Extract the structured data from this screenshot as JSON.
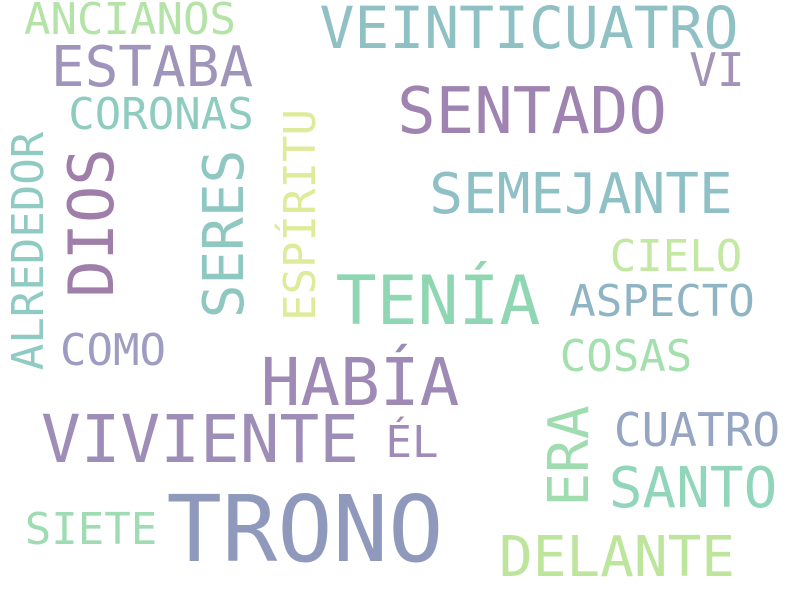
{
  "words": {
    "trono": {
      "text": "TRONO",
      "color": "#8f99bb"
    },
    "viviente": {
      "text": "VIVIENTE",
      "color": "#9e8db7"
    },
    "habia": {
      "text": "HABÍA",
      "color": "#9e8ab5"
    },
    "tenia": {
      "text": "TENÍA",
      "color": "#8fd6b3"
    },
    "sentado": {
      "text": "SENTADO",
      "color": "#9f83b0"
    },
    "veinticuatro": {
      "text": "VEINTICUATRO",
      "color": "#8fc0c4"
    },
    "estaba": {
      "text": "ESTABA",
      "color": "#9f94b9"
    },
    "semejante": {
      "text": "SEMEJANTE",
      "color": "#8fc0c6"
    },
    "delante": {
      "text": "DELANTE",
      "color": "#bde59c"
    },
    "santo": {
      "text": "SANTO",
      "color": "#91d5ba"
    },
    "dios": {
      "text": "DIOS",
      "color": "#9f7ea9"
    },
    "seres": {
      "text": "SERES",
      "color": "#8fc8c0"
    },
    "era": {
      "text": "ERA",
      "color": "#9fdcaf"
    },
    "aspecto": {
      "text": "ASPECTO",
      "color": "#8fb5c4"
    },
    "cuatro": {
      "text": "CUATRO",
      "color": "#95a5c2"
    },
    "cosas": {
      "text": "COSAS",
      "color": "#a4dfae"
    },
    "cielo": {
      "text": "CIELO",
      "color": "#c2e8a3"
    },
    "como": {
      "text": "COMO",
      "color": "#9f9cc3"
    },
    "siete": {
      "text": "SIETE",
      "color": "#9fdcb4"
    },
    "el": {
      "text": "ÉL",
      "color": "#a08ab7"
    },
    "vi": {
      "text": "VI",
      "color": "#a394b7"
    },
    "coronas": {
      "text": "CORONAS",
      "color": "#8fccc0"
    },
    "ancianos": {
      "text": "ANCIANOS",
      "color": "#b4e3a8"
    },
    "alrededor": {
      "text": "ALREDEDOR",
      "color": "#8fcbc2"
    },
    "espiritu": {
      "text": "ESPÍRITU",
      "color": "#dfeb9a"
    }
  }
}
